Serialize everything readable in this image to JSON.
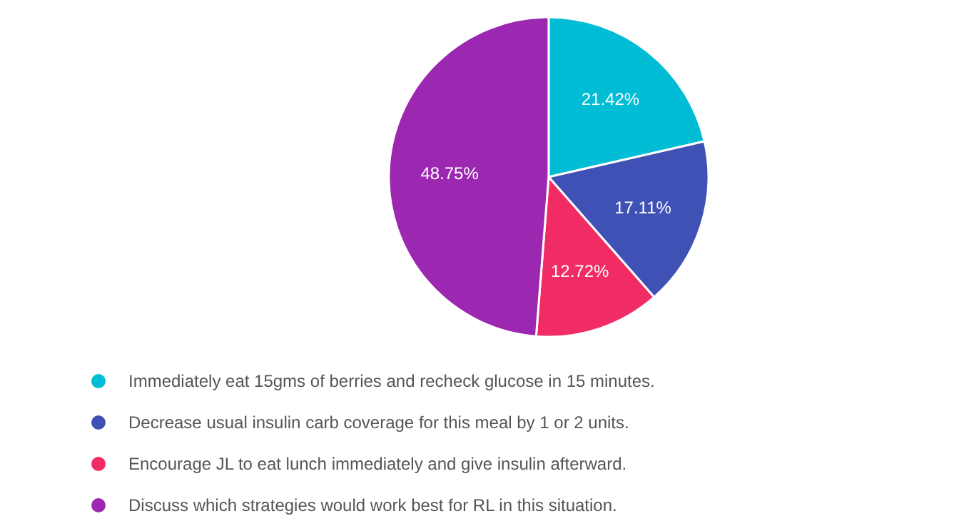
{
  "chart_data": {
    "type": "pie",
    "categories": [
      "Immediately eat 15gms of berries and recheck glucose in 15 minutes.",
      "Decrease usual insulin carb coverage for this meal by 1 or 2 units.",
      "Encourage JL to eat lunch immediately and give insulin afterward.",
      "Discuss which strategies would work best for RL in this situation."
    ],
    "values": [
      21.42,
      17.11,
      12.72,
      48.75
    ],
    "colors": [
      "#00bcd4",
      "#3f51b5",
      "#f12b63",
      "#9c27b0"
    ],
    "value_labels": [
      "21.42%",
      "17.11%",
      "12.72%",
      "48.75%"
    ],
    "legend": "bottom"
  }
}
